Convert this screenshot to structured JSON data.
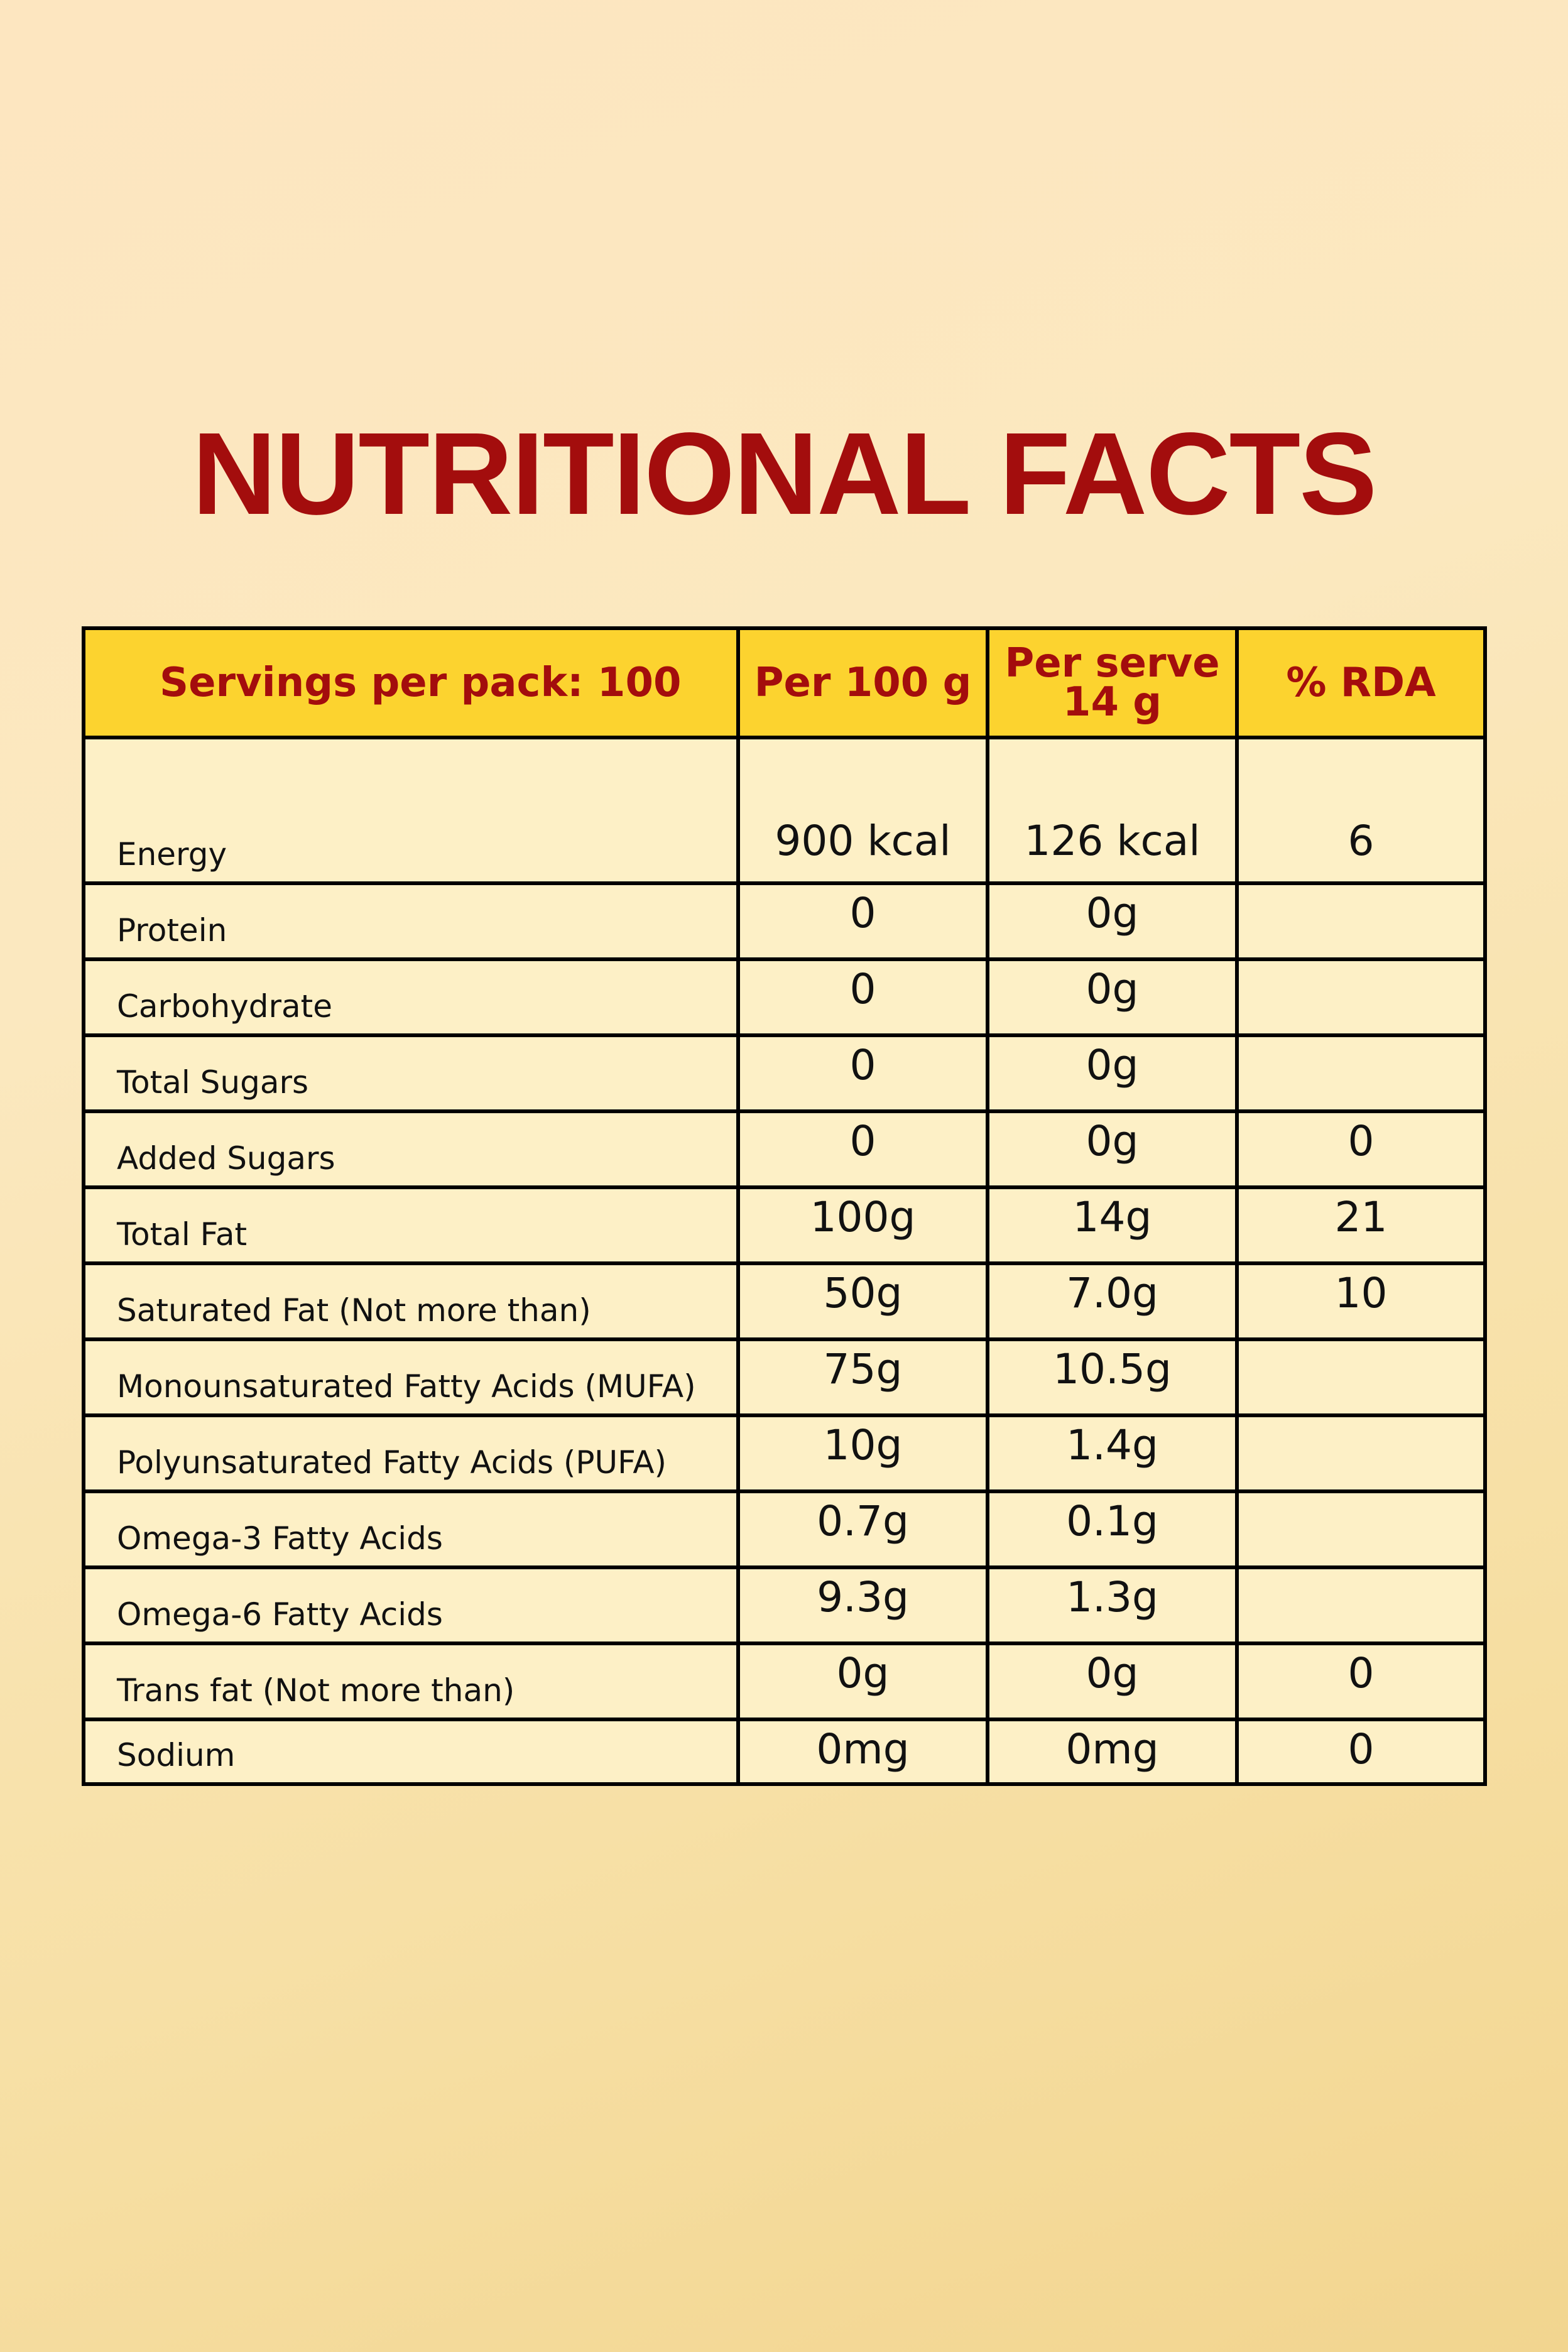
{
  "title": "NUTRITIONAL FACTS",
  "table": {
    "headers": {
      "servings": "Servings per pack: 100",
      "per100": "Per 100 g",
      "perServeLine1": "Per serve",
      "perServeLine2": "14 g",
      "rda": "% RDA"
    },
    "rows": [
      {
        "nutrient": "Energy",
        "per100": "900 kcal",
        "perServe": "126 kcal",
        "rda": "6"
      },
      {
        "nutrient": "Protein",
        "per100": "0",
        "perServe": "0g",
        "rda": ""
      },
      {
        "nutrient": "Carbohydrate",
        "per100": "0",
        "perServe": "0g",
        "rda": ""
      },
      {
        "nutrient": "Total Sugars",
        "per100": "0",
        "perServe": "0g",
        "rda": ""
      },
      {
        "nutrient": "Added Sugars",
        "per100": "0",
        "perServe": "0g",
        "rda": "0"
      },
      {
        "nutrient": "Total Fat",
        "per100": "100g",
        "perServe": "14g",
        "rda": "21"
      },
      {
        "nutrient": "Saturated Fat (Not more than)",
        "per100": "50g",
        "perServe": "7.0g",
        "rda": "10"
      },
      {
        "nutrient": "Monounsaturated Fatty Acids (MUFA)",
        "per100": "75g",
        "perServe": "10.5g",
        "rda": ""
      },
      {
        "nutrient": "Polyunsaturated Fatty Acids (PUFA)",
        "per100": "10g",
        "perServe": "1.4g",
        "rda": ""
      },
      {
        "nutrient": "Omega-3 Fatty Acids",
        "per100": "0.7g",
        "perServe": "0.1g",
        "rda": ""
      },
      {
        "nutrient": "Omega-6 Fatty Acids",
        "per100": "9.3g",
        "perServe": "1.3g",
        "rda": ""
      },
      {
        "nutrient": "Trans fat (Not more than)",
        "per100": "0g",
        "perServe": "0g",
        "rda": "0"
      },
      {
        "nutrient": "Sodium",
        "per100": "0mg",
        "perServe": "0mg",
        "rda": "0"
      }
    ]
  },
  "colors": {
    "title": "#a30d0d",
    "header_bg": "#fcd32f",
    "cell_bg": "#fdf0c6",
    "border": "#000000"
  }
}
